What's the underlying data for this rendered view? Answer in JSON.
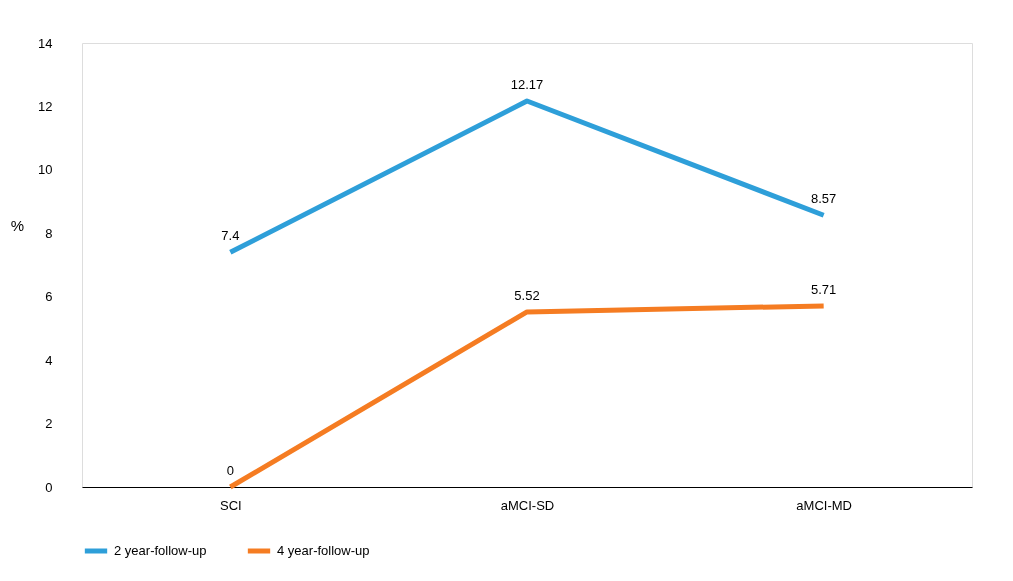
{
  "chart_data": {
    "type": "line",
    "ylabel": "%",
    "categories": [
      "SCI",
      "aMCI-SD",
      "aMCI-MD"
    ],
    "series": [
      {
        "name": "2 year-follow-up",
        "color": "#2e9fd9",
        "values": [
          7.4,
          12.17,
          8.57
        ]
      },
      {
        "name": "4 year-follow-up",
        "color": "#f57c22",
        "values": [
          0,
          5.52,
          5.71
        ]
      }
    ],
    "ylim": [
      0,
      14
    ],
    "yticks": [
      0,
      2,
      4,
      6,
      8,
      10,
      12,
      14
    ],
    "grid": false,
    "legend": "bottom",
    "data_labels": true,
    "marker": "none",
    "line_style": "solid"
  }
}
